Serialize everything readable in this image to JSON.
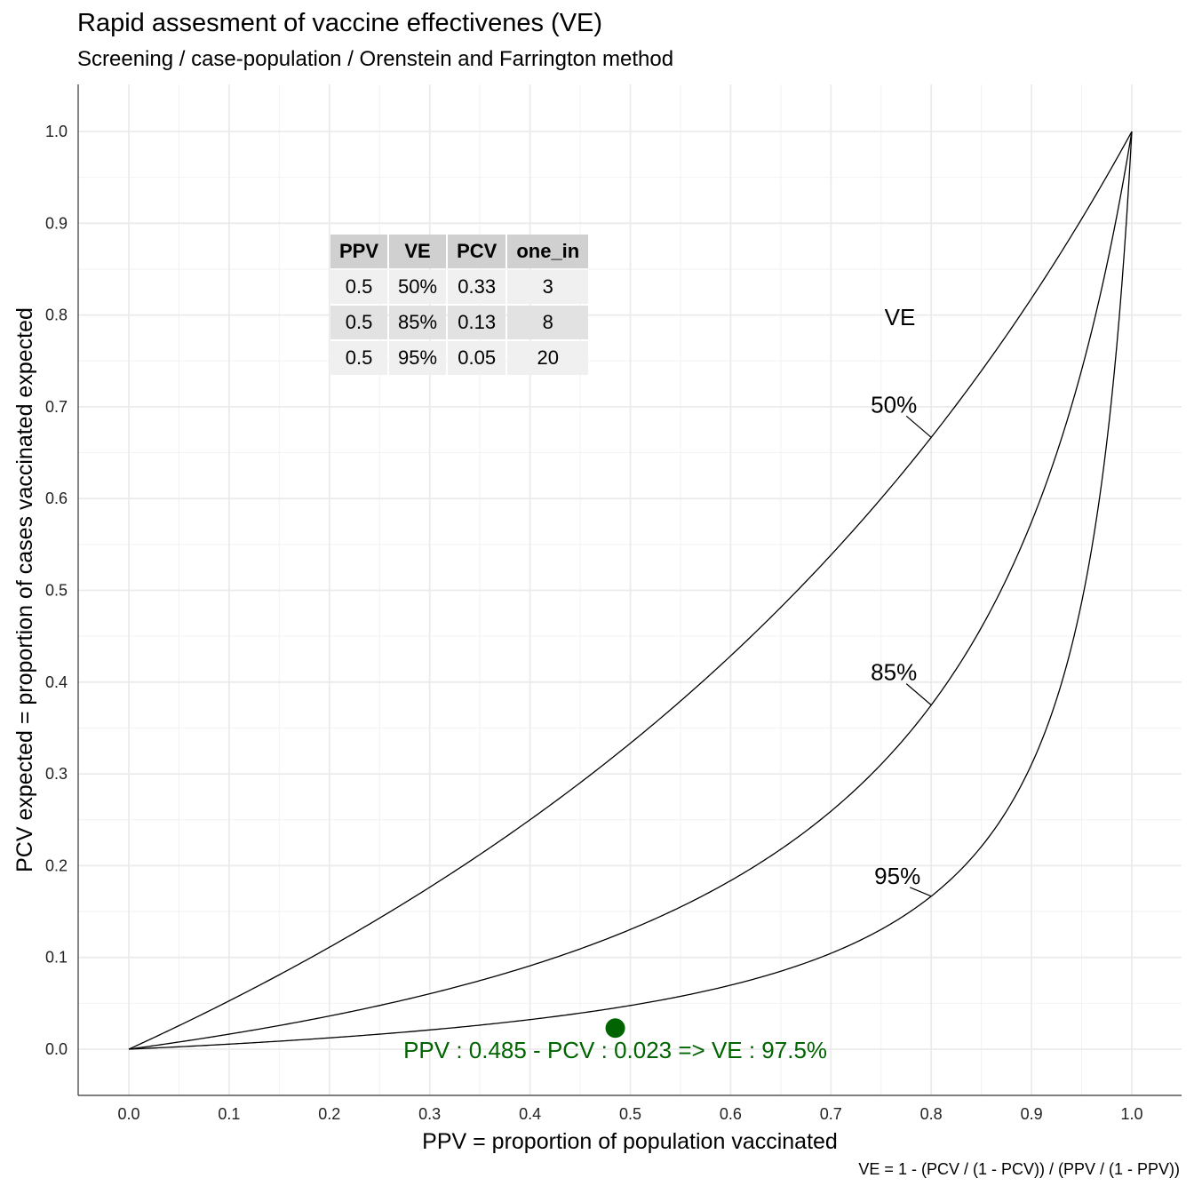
{
  "header": {
    "title": "Rapid assesment of vaccine effectivenes (VE)",
    "subtitle": "Screening / case-population / Orenstein and Farrington method"
  },
  "caption": "VE = 1 - (PCV / (1 - PCV)) / (PPV / (1 - PPV))",
  "chart_data": {
    "type": "line",
    "title": "Rapid assesment of vaccine effectivenes (VE)",
    "subtitle": "Screening / case-population / Orenstein and Farrington method",
    "xlabel": "PPV = proportion of population vaccinated",
    "ylabel": "PCV expected = proportion of cases vaccinated expected",
    "xlim": [
      0,
      1
    ],
    "ylim": [
      0,
      1
    ],
    "x_ticks": [
      "0.0",
      "0.1",
      "0.2",
      "0.3",
      "0.4",
      "0.5",
      "0.6",
      "0.7",
      "0.8",
      "0.9",
      "1.0"
    ],
    "y_ticks": [
      "0.0",
      "0.1",
      "0.2",
      "0.3",
      "0.4",
      "0.5",
      "0.6",
      "0.7",
      "0.8",
      "0.9",
      "1.0"
    ],
    "grid": true,
    "legend_title": "VE",
    "series": [
      {
        "name": "50%",
        "ve": 0.5
      },
      {
        "name": "85%",
        "ve": 0.85
      },
      {
        "name": "95%",
        "ve": 0.95
      }
    ],
    "series_label_ppv": 0.8,
    "point": {
      "x": 0.485,
      "y": 0.023,
      "color": "#006400"
    },
    "annotation": "PPV : 0.485 - PCV : 0.023 => VE : 97.5%"
  },
  "table": {
    "headers": [
      "PPV",
      "VE",
      "PCV",
      "one_in"
    ],
    "rows": [
      [
        "0.5",
        "50%",
        "0.33",
        "3"
      ],
      [
        "0.5",
        "85%",
        "0.13",
        "8"
      ],
      [
        "0.5",
        "95%",
        "0.05",
        "20"
      ]
    ]
  }
}
